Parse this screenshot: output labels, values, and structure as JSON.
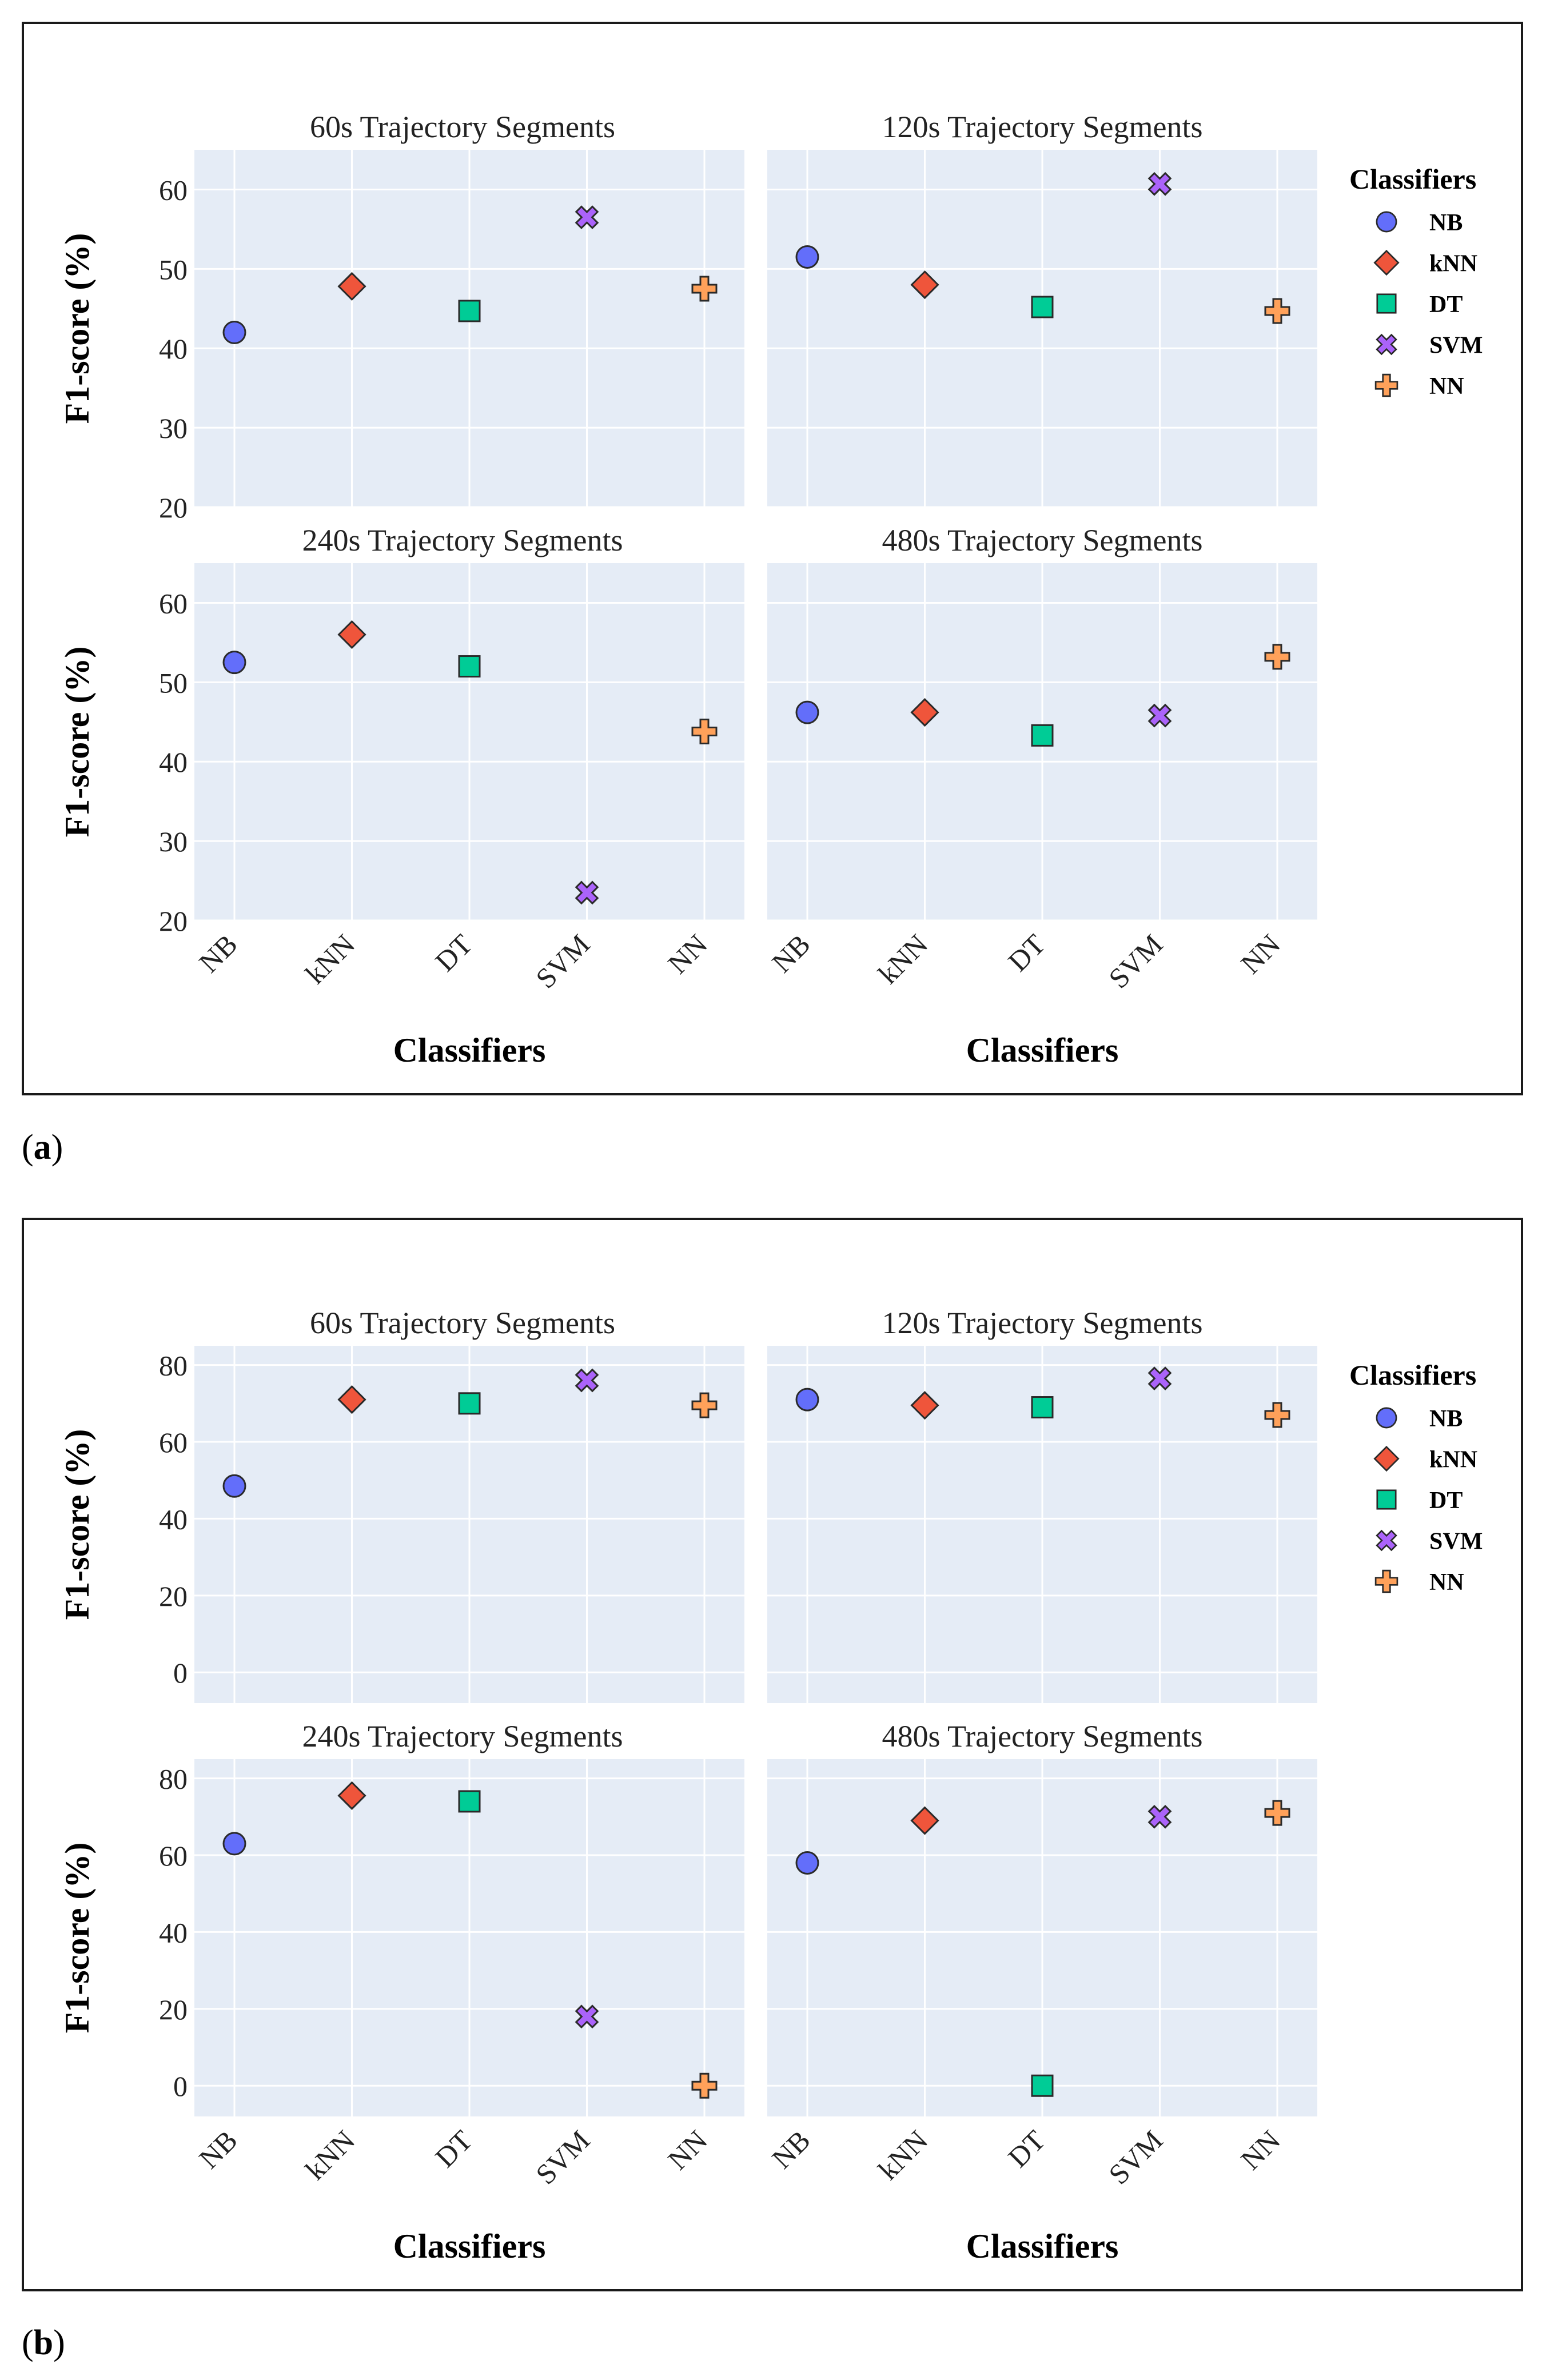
{
  "figure": {
    "panels": [
      {
        "caption": "a",
        "legend_title": "Classifiers",
        "subplots": [
          {
            "title": "60s Trajectory Segments"
          },
          {
            "title": "120s Trajectory Segments"
          },
          {
            "title": "240s Trajectory Segments"
          },
          {
            "title": "480s Trajectory Segments"
          }
        ]
      },
      {
        "caption": "b",
        "legend_title": "Classifiers",
        "subplots": [
          {
            "title": "60s Trajectory Segments"
          },
          {
            "title": "120s Trajectory Segments"
          },
          {
            "title": "240s Trajectory Segments"
          },
          {
            "title": "480s Trajectory Segments"
          }
        ]
      }
    ]
  },
  "chart_data": [
    {
      "type": "scatter",
      "panel": "a",
      "ylabel": "F1-score (%)",
      "xlabel": "Classifiers",
      "ylim": [
        20,
        65
      ],
      "yticks": [
        20,
        30,
        40,
        50,
        60
      ],
      "categories": [
        "NB",
        "kNN",
        "DT",
        "SVM",
        "NN"
      ],
      "legend_title": "Classifiers",
      "legend": [
        "NB",
        "kNN",
        "DT",
        "SVM",
        "NN"
      ],
      "colors": {
        "NB": "#636efa",
        "kNN": "#ef553b",
        "DT": "#00cc96",
        "SVM": "#ab63fa",
        "NN": "#ffa15a"
      },
      "markers": {
        "NB": "circle",
        "kNN": "diamond",
        "DT": "square",
        "SVM": "x",
        "NN": "cross"
      },
      "subplots": [
        {
          "title": "60s Trajectory Segments",
          "values": [
            42.0,
            47.8,
            44.7,
            56.5,
            47.5
          ]
        },
        {
          "title": "120s Trajectory Segments",
          "values": [
            51.5,
            48.0,
            45.2,
            60.7,
            44.7
          ]
        },
        {
          "title": "240s Trajectory Segments",
          "values": [
            52.5,
            56.0,
            52.0,
            23.5,
            43.8
          ]
        },
        {
          "title": "480s Trajectory Segments",
          "values": [
            46.2,
            46.2,
            43.3,
            45.8,
            53.2
          ]
        }
      ]
    },
    {
      "type": "scatter",
      "panel": "b",
      "ylabel": "F1-score (%)",
      "xlabel": "Classifiers",
      "ylim": [
        -8,
        85
      ],
      "yticks": [
        0,
        20,
        40,
        60,
        80
      ],
      "categories": [
        "NB",
        "kNN",
        "DT",
        "SVM",
        "NN"
      ],
      "legend_title": "Classifiers",
      "legend": [
        "NB",
        "kNN",
        "DT",
        "SVM",
        "NN"
      ],
      "colors": {
        "NB": "#636efa",
        "kNN": "#ef553b",
        "DT": "#00cc96",
        "SVM": "#ab63fa",
        "NN": "#ffa15a"
      },
      "markers": {
        "NB": "circle",
        "kNN": "diamond",
        "DT": "square",
        "SVM": "x",
        "NN": "cross"
      },
      "subplots": [
        {
          "title": "60s Trajectory Segments",
          "values": [
            48.5,
            71.0,
            70.0,
            76.0,
            69.5
          ]
        },
        {
          "title": "120s Trajectory Segments",
          "values": [
            71.0,
            69.5,
            69.0,
            76.5,
            67.0
          ]
        },
        {
          "title": "240s Trajectory Segments",
          "values": [
            63.0,
            75.5,
            74.0,
            18.0,
            0.0
          ]
        },
        {
          "title": "480s Trajectory Segments",
          "values": [
            58.0,
            69.0,
            0.0,
            70.0,
            71.0
          ]
        }
      ]
    }
  ]
}
